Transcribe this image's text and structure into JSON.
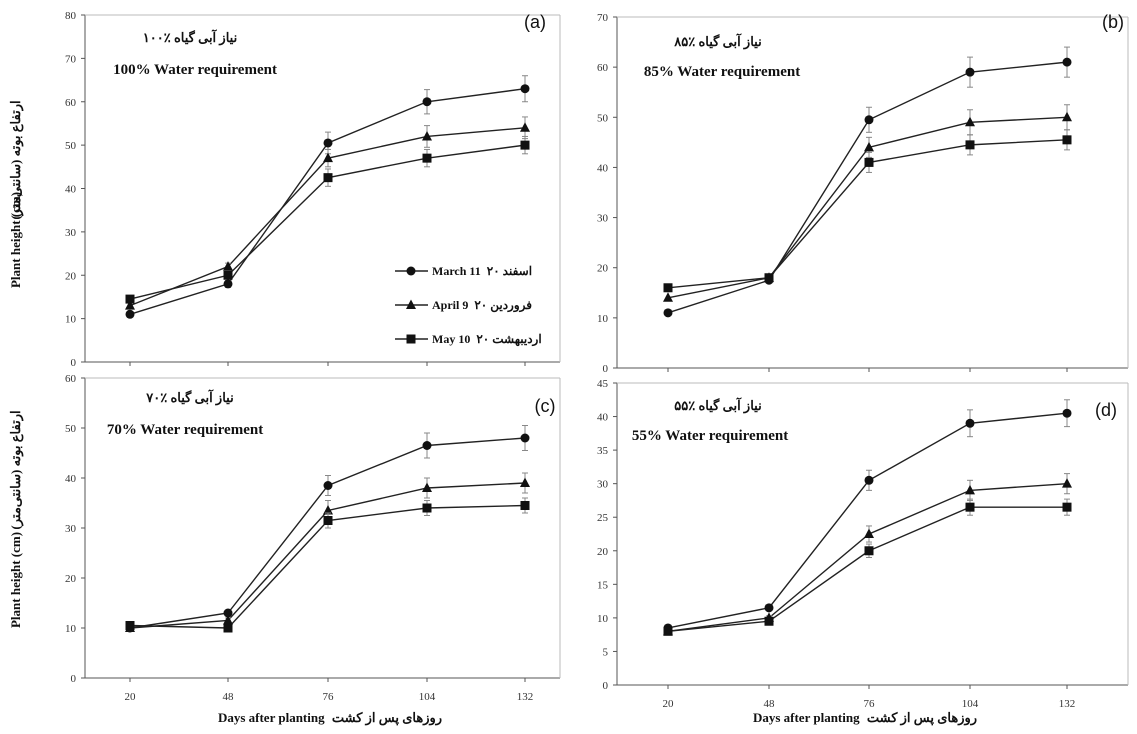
{
  "figure": {
    "ylabel_en": "Plant height (cm)",
    "ylabel_fa": "ارتفاع بوته (سانتی‌متر)",
    "xlabel_en": "Days after planting",
    "xlabel_fa": "روزهای پس از کشت"
  },
  "legend": [
    {
      "label_fa": "۲۰ اسفند",
      "label_en": "March 11",
      "marker": "circle"
    },
    {
      "label_fa": "۲۰ فروردین",
      "label_en": "April 9",
      "marker": "triangle"
    },
    {
      "label_fa": "۲۰ اردیبهشت",
      "label_en": "May 10",
      "marker": "square"
    }
  ],
  "chart_data": [
    {
      "panel": "(a)",
      "type": "line",
      "title_fa": "۱۰۰٪ نیاز آبی گیاه",
      "title_en": "100% Water requirement",
      "x": [
        20,
        48,
        76,
        104,
        132
      ],
      "ylim": [
        0,
        80
      ],
      "yticks": [
        0,
        10,
        20,
        30,
        40,
        50,
        60,
        70,
        80
      ],
      "series": [
        {
          "name": "March 11",
          "marker": "circle",
          "values": [
            11,
            18,
            50.5,
            60,
            63
          ],
          "errors": [
            0,
            0.8,
            2.5,
            2.8,
            3
          ]
        },
        {
          "name": "April 9",
          "marker": "triangle",
          "values": [
            13,
            22,
            47,
            52,
            54
          ],
          "errors": [
            0,
            0.8,
            2,
            2.5,
            2.5
          ]
        },
        {
          "name": "May 10",
          "marker": "square",
          "values": [
            14.5,
            20,
            42.5,
            47,
            50
          ],
          "errors": [
            0,
            0.8,
            2,
            2,
            2
          ]
        }
      ]
    },
    {
      "panel": "(b)",
      "type": "line",
      "title_fa": "۸۵٪ نیاز آبی گیاه",
      "title_en": "85% Water requirement",
      "x": [
        20,
        48,
        76,
        104,
        132
      ],
      "ylim": [
        0,
        70
      ],
      "yticks": [
        0,
        10,
        20,
        30,
        40,
        50,
        60,
        70
      ],
      "series": [
        {
          "name": "March 11",
          "marker": "circle",
          "values": [
            11,
            17.5,
            49.5,
            59,
            61
          ],
          "errors": [
            0,
            0.5,
            2.5,
            3,
            3
          ]
        },
        {
          "name": "April 9",
          "marker": "triangle",
          "values": [
            14,
            18,
            44,
            49,
            50
          ],
          "errors": [
            0,
            0.5,
            2,
            2.5,
            2.5
          ]
        },
        {
          "name": "May 10",
          "marker": "square",
          "values": [
            16,
            18,
            41,
            44.5,
            45.5
          ],
          "errors": [
            0,
            0.5,
            2,
            2,
            2
          ]
        }
      ]
    },
    {
      "panel": "(c)",
      "type": "line",
      "title_fa": "۷۰٪ نیاز آبی گیاه",
      "title_en": "70% Water requirement",
      "x": [
        20,
        48,
        76,
        104,
        132
      ],
      "ylim": [
        0,
        60
      ],
      "yticks": [
        0,
        10,
        20,
        30,
        40,
        50,
        60
      ],
      "series": [
        {
          "name": "March 11",
          "marker": "circle",
          "values": [
            10,
            13,
            38.5,
            46.5,
            48
          ],
          "errors": [
            0,
            0.5,
            2,
            2.5,
            2.5
          ]
        },
        {
          "name": "April 9",
          "marker": "triangle",
          "values": [
            10,
            11.5,
            33.5,
            38,
            39
          ],
          "errors": [
            0,
            0.5,
            2,
            2,
            2
          ]
        },
        {
          "name": "May 10",
          "marker": "square",
          "values": [
            10.5,
            10,
            31.5,
            34,
            34.5
          ],
          "errors": [
            0,
            0.5,
            1.5,
            1.5,
            1.5
          ]
        }
      ]
    },
    {
      "panel": "(d)",
      "type": "line",
      "title_fa": "۵۵٪ نیاز آبی گیاه",
      "title_en": "55% Water requirement",
      "x": [
        20,
        48,
        76,
        104,
        132
      ],
      "ylim": [
        0,
        45
      ],
      "yticks": [
        0,
        5,
        10,
        15,
        20,
        25,
        30,
        35,
        40,
        45
      ],
      "series": [
        {
          "name": "March 11",
          "marker": "circle",
          "values": [
            8.5,
            11.5,
            30.5,
            39,
            40.5
          ],
          "errors": [
            0,
            0.3,
            1.5,
            2,
            2
          ]
        },
        {
          "name": "April 9",
          "marker": "triangle",
          "values": [
            8,
            10,
            22.5,
            29,
            30
          ],
          "errors": [
            0,
            0.3,
            1.2,
            1.5,
            1.5
          ]
        },
        {
          "name": "May 10",
          "marker": "square",
          "values": [
            8,
            9.5,
            20,
            26.5,
            26.5
          ],
          "errors": [
            0,
            0.3,
            1,
            1.2,
            1.2
          ]
        }
      ]
    }
  ]
}
